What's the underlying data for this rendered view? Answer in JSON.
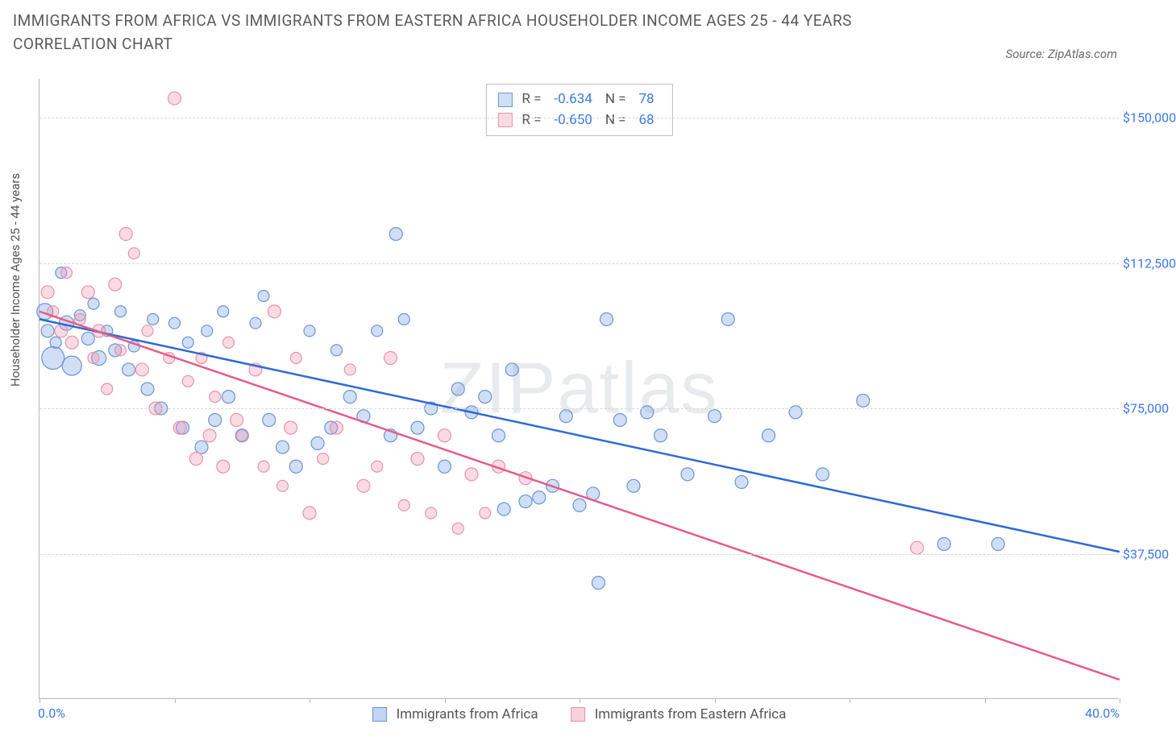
{
  "title": "IMMIGRANTS FROM AFRICA VS IMMIGRANTS FROM EASTERN AFRICA HOUSEHOLDER INCOME AGES 25 - 44 YEARS CORRELATION CHART",
  "source": "Source: ZipAtlas.com",
  "watermark": "ZIPatlas",
  "chart": {
    "type": "scatter",
    "y_axis_label": "Householder Income Ages 25 - 44 years",
    "xlim": [
      0,
      40
    ],
    "ylim": [
      0,
      160000
    ],
    "x_ticks": [
      0,
      5,
      10,
      15,
      20,
      25,
      30,
      35,
      40
    ],
    "x_tick_labels": {
      "0": "0.0%",
      "40": "40.0%"
    },
    "y_ticks": [
      37500,
      75000,
      112500,
      150000
    ],
    "y_tick_labels": [
      "$37,500",
      "$75,000",
      "$112,500",
      "$150,000"
    ],
    "grid_color": "#d8d8d8",
    "background_color": "#ffffff",
    "series": [
      {
        "name": "Immigrants from Africa",
        "fill": "rgba(120,160,230,0.35)",
        "stroke": "#6a95d8",
        "line_color": "#2e69d6",
        "R": "-0.634",
        "N": "78",
        "trend": {
          "x1": 0,
          "y1": 98000,
          "x2": 40,
          "y2": 38000
        },
        "points": [
          {
            "x": 0.2,
            "y": 100000,
            "r": 10
          },
          {
            "x": 0.3,
            "y": 95000,
            "r": 8
          },
          {
            "x": 0.5,
            "y": 88000,
            "r": 14
          },
          {
            "x": 0.6,
            "y": 92000,
            "r": 7
          },
          {
            "x": 0.8,
            "y": 110000,
            "r": 7
          },
          {
            "x": 1.0,
            "y": 97000,
            "r": 9
          },
          {
            "x": 1.2,
            "y": 86000,
            "r": 12
          },
          {
            "x": 1.5,
            "y": 99000,
            "r": 7
          },
          {
            "x": 1.8,
            "y": 93000,
            "r": 8
          },
          {
            "x": 2.0,
            "y": 102000,
            "r": 7
          },
          {
            "x": 2.2,
            "y": 88000,
            "r": 9
          },
          {
            "x": 2.5,
            "y": 95000,
            "r": 7
          },
          {
            "x": 2.8,
            "y": 90000,
            "r": 8
          },
          {
            "x": 3.0,
            "y": 100000,
            "r": 7
          },
          {
            "x": 3.3,
            "y": 85000,
            "r": 8
          },
          {
            "x": 3.5,
            "y": 91000,
            "r": 7
          },
          {
            "x": 4.0,
            "y": 80000,
            "r": 8
          },
          {
            "x": 4.2,
            "y": 98000,
            "r": 7
          },
          {
            "x": 4.5,
            "y": 75000,
            "r": 8
          },
          {
            "x": 5.0,
            "y": 97000,
            "r": 7
          },
          {
            "x": 5.3,
            "y": 70000,
            "r": 8
          },
          {
            "x": 5.5,
            "y": 92000,
            "r": 7
          },
          {
            "x": 6.0,
            "y": 65000,
            "r": 8
          },
          {
            "x": 6.2,
            "y": 95000,
            "r": 7
          },
          {
            "x": 6.5,
            "y": 72000,
            "r": 8
          },
          {
            "x": 6.8,
            "y": 100000,
            "r": 7
          },
          {
            "x": 7.0,
            "y": 78000,
            "r": 8
          },
          {
            "x": 7.5,
            "y": 68000,
            "r": 8
          },
          {
            "x": 8.0,
            "y": 97000,
            "r": 7
          },
          {
            "x": 8.3,
            "y": 104000,
            "r": 7
          },
          {
            "x": 8.5,
            "y": 72000,
            "r": 8
          },
          {
            "x": 9.0,
            "y": 65000,
            "r": 8
          },
          {
            "x": 9.5,
            "y": 60000,
            "r": 8
          },
          {
            "x": 10.0,
            "y": 95000,
            "r": 7
          },
          {
            "x": 10.3,
            "y": 66000,
            "r": 8
          },
          {
            "x": 10.8,
            "y": 70000,
            "r": 8
          },
          {
            "x": 11.0,
            "y": 90000,
            "r": 7
          },
          {
            "x": 11.5,
            "y": 78000,
            "r": 8
          },
          {
            "x": 12.0,
            "y": 73000,
            "r": 8
          },
          {
            "x": 12.5,
            "y": 95000,
            "r": 7
          },
          {
            "x": 13.0,
            "y": 68000,
            "r": 8
          },
          {
            "x": 13.2,
            "y": 120000,
            "r": 8
          },
          {
            "x": 13.5,
            "y": 98000,
            "r": 7
          },
          {
            "x": 14.0,
            "y": 70000,
            "r": 8
          },
          {
            "x": 14.5,
            "y": 75000,
            "r": 8
          },
          {
            "x": 15.0,
            "y": 60000,
            "r": 8
          },
          {
            "x": 15.5,
            "y": 80000,
            "r": 8
          },
          {
            "x": 16.0,
            "y": 74000,
            "r": 8
          },
          {
            "x": 16.5,
            "y": 78000,
            "r": 8
          },
          {
            "x": 17.0,
            "y": 68000,
            "r": 8
          },
          {
            "x": 17.2,
            "y": 49000,
            "r": 8
          },
          {
            "x": 17.5,
            "y": 85000,
            "r": 8
          },
          {
            "x": 18.0,
            "y": 51000,
            "r": 8
          },
          {
            "x": 18.5,
            "y": 52000,
            "r": 8
          },
          {
            "x": 19.0,
            "y": 55000,
            "r": 8
          },
          {
            "x": 19.5,
            "y": 73000,
            "r": 8
          },
          {
            "x": 20.0,
            "y": 50000,
            "r": 8
          },
          {
            "x": 20.5,
            "y": 53000,
            "r": 8
          },
          {
            "x": 20.7,
            "y": 30000,
            "r": 8
          },
          {
            "x": 21.0,
            "y": 98000,
            "r": 8
          },
          {
            "x": 21.5,
            "y": 72000,
            "r": 8
          },
          {
            "x": 22.0,
            "y": 55000,
            "r": 8
          },
          {
            "x": 22.5,
            "y": 74000,
            "r": 8
          },
          {
            "x": 23.0,
            "y": 68000,
            "r": 8
          },
          {
            "x": 24.0,
            "y": 58000,
            "r": 8
          },
          {
            "x": 25.0,
            "y": 73000,
            "r": 8
          },
          {
            "x": 25.5,
            "y": 98000,
            "r": 8
          },
          {
            "x": 26.0,
            "y": 56000,
            "r": 8
          },
          {
            "x": 27.0,
            "y": 68000,
            "r": 8
          },
          {
            "x": 28.0,
            "y": 74000,
            "r": 8
          },
          {
            "x": 29.0,
            "y": 58000,
            "r": 8
          },
          {
            "x": 30.5,
            "y": 77000,
            "r": 8
          },
          {
            "x": 33.5,
            "y": 40000,
            "r": 8
          },
          {
            "x": 35.5,
            "y": 40000,
            "r": 8
          }
        ]
      },
      {
        "name": "Immigrants from Eastern Africa",
        "fill": "rgba(240,150,175,0.35)",
        "stroke": "#e794ab",
        "line_color": "#e65b88",
        "R": "-0.650",
        "N": "68",
        "trend": {
          "x1": 0,
          "y1": 100000,
          "x2": 40,
          "y2": 5000
        },
        "points": [
          {
            "x": 0.3,
            "y": 105000,
            "r": 8
          },
          {
            "x": 0.5,
            "y": 100000,
            "r": 7
          },
          {
            "x": 0.8,
            "y": 95000,
            "r": 8
          },
          {
            "x": 1.0,
            "y": 110000,
            "r": 7
          },
          {
            "x": 1.2,
            "y": 92000,
            "r": 8
          },
          {
            "x": 1.5,
            "y": 98000,
            "r": 7
          },
          {
            "x": 1.8,
            "y": 105000,
            "r": 8
          },
          {
            "x": 2.0,
            "y": 88000,
            "r": 7
          },
          {
            "x": 2.2,
            "y": 95000,
            "r": 8
          },
          {
            "x": 2.5,
            "y": 80000,
            "r": 7
          },
          {
            "x": 2.8,
            "y": 107000,
            "r": 8
          },
          {
            "x": 3.0,
            "y": 90000,
            "r": 7
          },
          {
            "x": 3.2,
            "y": 120000,
            "r": 8
          },
          {
            "x": 3.5,
            "y": 115000,
            "r": 7
          },
          {
            "x": 3.8,
            "y": 85000,
            "r": 8
          },
          {
            "x": 4.0,
            "y": 95000,
            "r": 7
          },
          {
            "x": 4.3,
            "y": 75000,
            "r": 8
          },
          {
            "x": 4.8,
            "y": 88000,
            "r": 7
          },
          {
            "x": 5.0,
            "y": 155000,
            "r": 8
          },
          {
            "x": 5.2,
            "y": 70000,
            "r": 8
          },
          {
            "x": 5.5,
            "y": 82000,
            "r": 7
          },
          {
            "x": 5.8,
            "y": 62000,
            "r": 8
          },
          {
            "x": 6.0,
            "y": 88000,
            "r": 7
          },
          {
            "x": 6.3,
            "y": 68000,
            "r": 8
          },
          {
            "x": 6.5,
            "y": 78000,
            "r": 7
          },
          {
            "x": 6.8,
            "y": 60000,
            "r": 8
          },
          {
            "x": 7.0,
            "y": 92000,
            "r": 7
          },
          {
            "x": 7.3,
            "y": 72000,
            "r": 8
          },
          {
            "x": 7.5,
            "y": 68000,
            "r": 7
          },
          {
            "x": 8.0,
            "y": 85000,
            "r": 8
          },
          {
            "x": 8.3,
            "y": 60000,
            "r": 7
          },
          {
            "x": 8.7,
            "y": 100000,
            "r": 8
          },
          {
            "x": 9.0,
            "y": 55000,
            "r": 7
          },
          {
            "x": 9.3,
            "y": 70000,
            "r": 8
          },
          {
            "x": 9.5,
            "y": 88000,
            "r": 7
          },
          {
            "x": 10.0,
            "y": 48000,
            "r": 8
          },
          {
            "x": 10.5,
            "y": 62000,
            "r": 7
          },
          {
            "x": 11.0,
            "y": 70000,
            "r": 8
          },
          {
            "x": 11.5,
            "y": 85000,
            "r": 7
          },
          {
            "x": 12.0,
            "y": 55000,
            "r": 8
          },
          {
            "x": 12.5,
            "y": 60000,
            "r": 7
          },
          {
            "x": 13.0,
            "y": 88000,
            "r": 8
          },
          {
            "x": 13.5,
            "y": 50000,
            "r": 7
          },
          {
            "x": 14.0,
            "y": 62000,
            "r": 8
          },
          {
            "x": 14.5,
            "y": 48000,
            "r": 7
          },
          {
            "x": 15.0,
            "y": 68000,
            "r": 8
          },
          {
            "x": 15.5,
            "y": 44000,
            "r": 7
          },
          {
            "x": 16.0,
            "y": 58000,
            "r": 8
          },
          {
            "x": 16.5,
            "y": 48000,
            "r": 7
          },
          {
            "x": 17.0,
            "y": 60000,
            "r": 8
          },
          {
            "x": 18.0,
            "y": 57000,
            "r": 8
          },
          {
            "x": 32.5,
            "y": 39000,
            "r": 8
          }
        ]
      }
    ],
    "bottom_legend": [
      {
        "label": "Immigrants from Africa",
        "fill": "rgba(120,160,230,0.45)",
        "stroke": "#6a95d8"
      },
      {
        "label": "Immigrants from Eastern Africa",
        "fill": "rgba(240,150,175,0.45)",
        "stroke": "#e794ab"
      }
    ],
    "title_fontsize": 19,
    "label_fontsize": 15,
    "tick_fontsize": 16,
    "tick_color": "#3b78e7"
  }
}
